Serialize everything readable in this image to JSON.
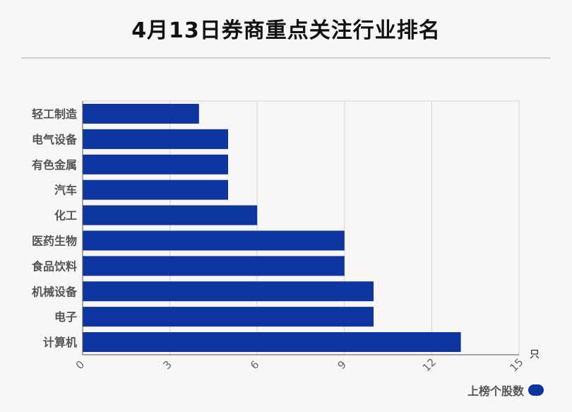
{
  "title": "4月13日券商重点关注行业排名",
  "legend": {
    "label": "上榜个股数",
    "color": "#0d35a0"
  },
  "chart_data": {
    "type": "bar",
    "orientation": "horizontal",
    "categories": [
      "轻工制造",
      "电气设备",
      "有色金属",
      "汽车",
      "化工",
      "医药生物",
      "食品饮料",
      "机械设备",
      "电子",
      "计算机"
    ],
    "series": [
      {
        "name": "上榜个股数",
        "values": [
          4,
          5,
          5,
          5,
          6,
          9,
          9,
          10,
          10,
          13
        ],
        "color": "#0d35a0"
      }
    ],
    "xlim": [
      0,
      15
    ],
    "xticks": [
      0,
      3,
      6,
      9,
      12,
      15
    ],
    "xunit": "只",
    "grid": true,
    "legend_position": "bottom-right"
  }
}
